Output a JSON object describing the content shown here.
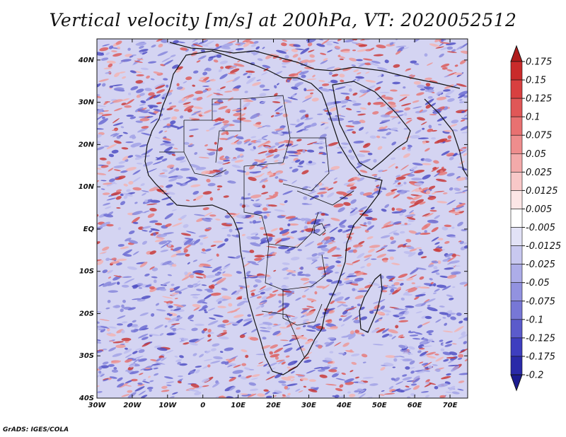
{
  "title": "Vertical velocity [m/s] at 200hPa, VT: 2020052512",
  "credit": "GrADS: IGES/COLA",
  "map": {
    "lon_labels": [
      "30W",
      "20W",
      "10W",
      "0",
      "10E",
      "20E",
      "30E",
      "40E",
      "50E",
      "60E",
      "70E"
    ],
    "lat_labels": [
      "40N",
      "30N",
      "20N",
      "10N",
      "EQ",
      "10S",
      "20S",
      "30S",
      "40S"
    ],
    "lon_range": [
      -30,
      75
    ],
    "lat_range": [
      -40,
      45
    ]
  },
  "colorbar": {
    "labels": [
      "0.175",
      "0.15",
      "0.125",
      "0.1",
      "0.075",
      "0.05",
      "0.025",
      "0.0125",
      "0.005",
      "-0.005",
      "-0.0125",
      "-0.025",
      "-0.05",
      "-0.075",
      "-0.1",
      "-0.125",
      "-0.175",
      "-0.2"
    ],
    "colors": [
      "#b01c1c",
      "#c92b2b",
      "#d84040",
      "#e05757",
      "#e87171",
      "#ee8d8d",
      "#f3aaaa",
      "#f8c8c8",
      "#fce6e6",
      "#ffffff",
      "#e2e2f6",
      "#c8c8f0",
      "#adade8",
      "#9292e0",
      "#7777d6",
      "#5b5bcb",
      "#3e3ebf",
      "#2a2aa8",
      "#1c1c90"
    ]
  },
  "colors": {
    "positive": "#d84040",
    "negative": "#4a4ac8",
    "coast": "#111111"
  }
}
